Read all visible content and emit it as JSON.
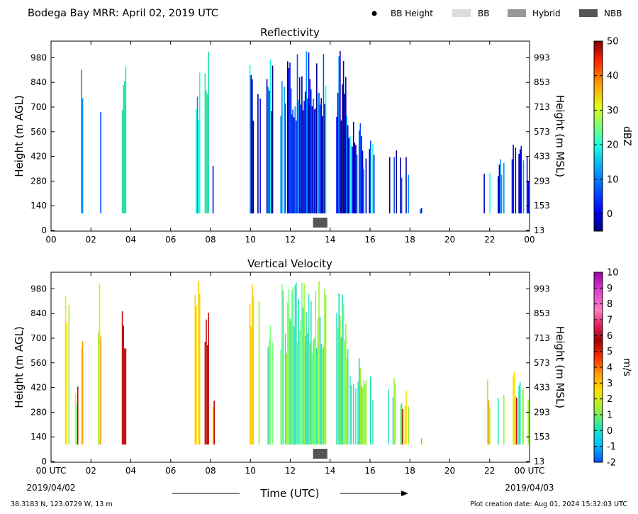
{
  "header": {
    "title": "Bodega Bay MRR:  April 02, 2019 UTC",
    "legend": [
      {
        "label": "BB Height",
        "symbol": "dot",
        "color": "#000000"
      },
      {
        "label": "BB",
        "symbol": "box",
        "color": "#dcdcdc"
      },
      {
        "label": "Hybrid",
        "symbol": "box",
        "color": "#999999"
      },
      {
        "label": "NBB",
        "symbol": "box",
        "color": "#555555"
      }
    ]
  },
  "footer": {
    "location": "38.3183 N, 123.0729 W, 13 m",
    "creation": "Plot creation date: Aug 01, 2024 15:32:03 UTC",
    "xlabel": "Time (UTC)",
    "start_date": "2019/04/02",
    "end_date": "2019/04/03"
  },
  "chart_data": [
    {
      "type": "heatmap",
      "title": "Reflectivity",
      "ylabel": "Height (m AGL)",
      "ylabel2": "Height (m MSL)",
      "yticks": [
        "0",
        "140",
        "280",
        "420",
        "560",
        "700",
        "840",
        "980"
      ],
      "yticks2": [
        "13",
        "153",
        "293",
        "433",
        "573",
        "713",
        "853",
        "993"
      ],
      "ylim": [
        0,
        1090
      ],
      "xticks": [
        "00",
        "02",
        "04",
        "06",
        "08",
        "10",
        "12",
        "14",
        "16",
        "18",
        "20",
        "22",
        "00"
      ],
      "xlim": [
        0,
        24
      ],
      "colorbar": {
        "label": "dBZ",
        "ticks": [
          "0",
          "10",
          "20",
          "30",
          "40",
          "50"
        ],
        "range": [
          -5,
          50
        ]
      },
      "nbb_markers": [
        {
          "start": 13.0,
          "end": 14.0
        }
      ],
      "colors": [
        "#00007f",
        "#0000d0",
        "#0028ff",
        "#0090ff",
        "#19ffe0",
        "#7dff7a",
        "#e0ff17",
        "#ff9800",
        "#ff1e00",
        "#800000"
      ]
    },
    {
      "type": "heatmap",
      "title": "Vertical Velocity",
      "ylabel": "Height (m AGL)",
      "ylabel2": "Height (m MSL)",
      "yticks": [
        "0",
        "140",
        "280",
        "420",
        "560",
        "700",
        "840",
        "980"
      ],
      "yticks2": [
        "13",
        "153",
        "293",
        "433",
        "573",
        "713",
        "853",
        "993"
      ],
      "ylim": [
        0,
        1090
      ],
      "xticks": [
        "00 UTC",
        "02",
        "04",
        "06",
        "08",
        "10",
        "12",
        "14",
        "16",
        "18",
        "20",
        "22",
        "00 UTC"
      ],
      "xlim": [
        0,
        24
      ],
      "colorbar": {
        "label": "m/s",
        "ticks": [
          "-2",
          "-1",
          "0",
          "1",
          "2",
          "3",
          "4",
          "5",
          "6",
          "7",
          "8",
          "9",
          "10"
        ],
        "range": [
          -2,
          10
        ]
      },
      "nbb_markers": [
        {
          "start": 13.0,
          "end": 14.0
        }
      ],
      "colors": [
        "#0050ff",
        "#00c8ff",
        "#1ee6b4",
        "#a0f03c",
        "#ffe000",
        "#ffa000",
        "#ff3000",
        "#a00000",
        "#e02060",
        "#ff80c0",
        "#e040d0",
        "#a000a0"
      ]
    }
  ]
}
